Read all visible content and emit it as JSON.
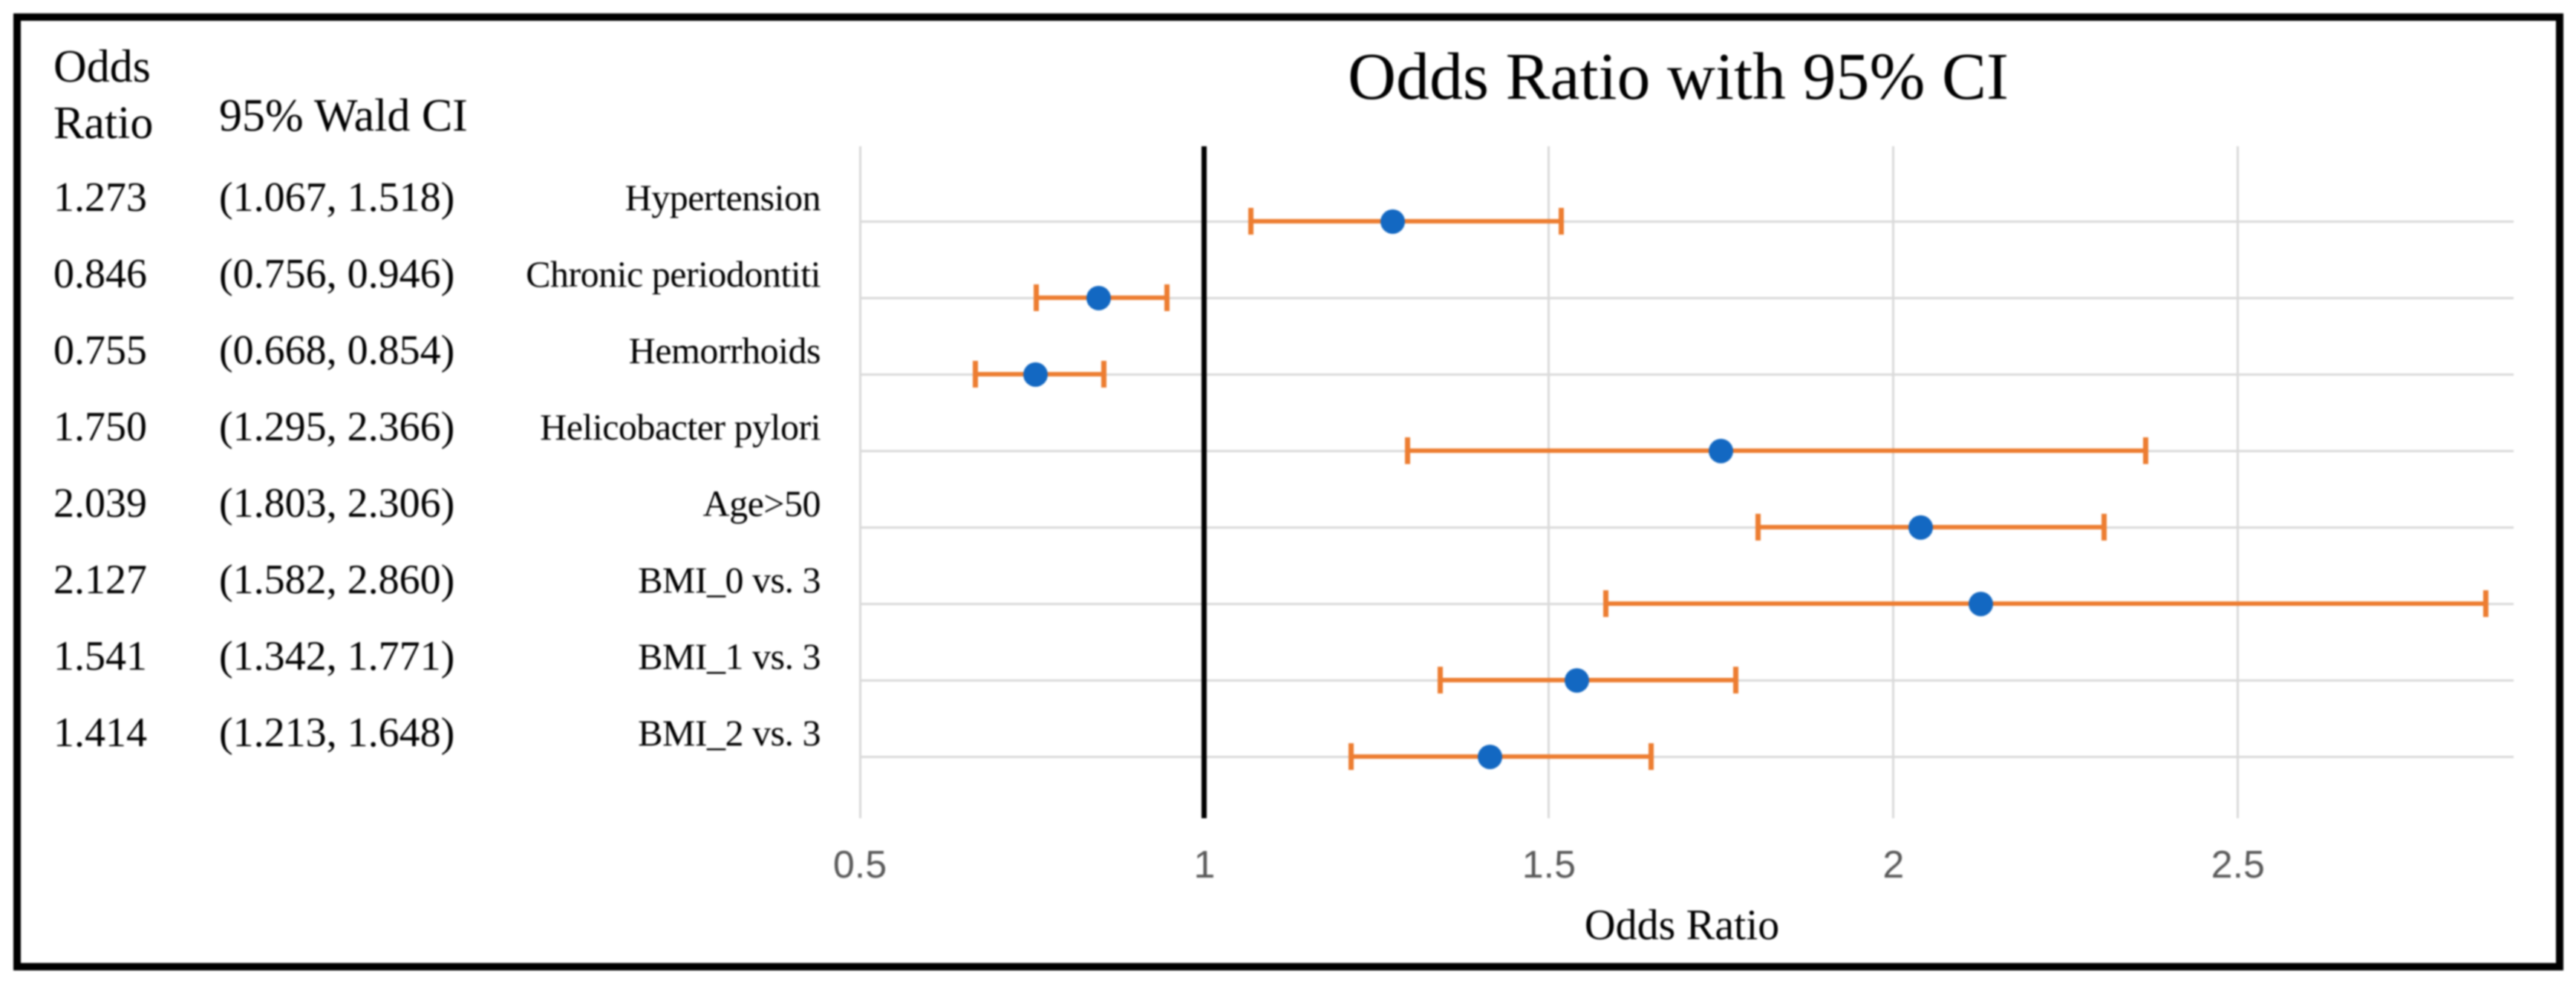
{
  "table": {
    "col1_header_line1": "Odds",
    "col1_header_line2": "Ratio",
    "col2_header": "95% Wald CI"
  },
  "chart_data": {
    "type": "scatter",
    "title": "Odds Ratio with 95% CI",
    "xlabel": "Odds Ratio",
    "xlim": [
      0.5,
      2.9
    ],
    "grid": true,
    "reference_line_x": 1,
    "gridline_values": [
      0.5,
      1.5,
      2,
      2.5
    ],
    "x_ticks": [
      {
        "value": 0.5,
        "label": "0.5"
      },
      {
        "value": 1,
        "label": "1"
      },
      {
        "value": 1.5,
        "label": "1.5"
      },
      {
        "value": 2,
        "label": "2"
      },
      {
        "value": 2.5,
        "label": "2.5"
      }
    ],
    "rows": [
      {
        "label": "Hypertension",
        "odds_ratio": 1.273,
        "ci_low": 1.067,
        "ci_high": 1.518,
        "or_text": "1.273",
        "ci_text": "(1.067, 1.518)"
      },
      {
        "label": "Chronic periodontiti",
        "odds_ratio": 0.846,
        "ci_low": 0.756,
        "ci_high": 0.946,
        "or_text": "0.846",
        "ci_text": "(0.756, 0.946)"
      },
      {
        "label": "Hemorrhoids",
        "odds_ratio": 0.755,
        "ci_low": 0.668,
        "ci_high": 0.854,
        "or_text": "0.755",
        "ci_text": "(0.668, 0.854)"
      },
      {
        "label": "Helicobacter pylori",
        "odds_ratio": 1.75,
        "ci_low": 1.295,
        "ci_high": 2.366,
        "or_text": "1.750",
        "ci_text": "(1.295, 2.366)"
      },
      {
        "label": "Age>50",
        "odds_ratio": 2.039,
        "ci_low": 1.803,
        "ci_high": 2.306,
        "or_text": "2.039",
        "ci_text": "(1.803, 2.306)"
      },
      {
        "label": "BMI_0 vs. 3",
        "odds_ratio": 2.127,
        "ci_low": 1.582,
        "ci_high": 2.86,
        "or_text": "2.127",
        "ci_text": "(1.582, 2.860)"
      },
      {
        "label": "BMI_1 vs. 3",
        "odds_ratio": 1.541,
        "ci_low": 1.342,
        "ci_high": 1.771,
        "or_text": "1.541",
        "ci_text": "(1.342, 1.771)"
      },
      {
        "label": "BMI_2 vs. 3",
        "odds_ratio": 1.414,
        "ci_low": 1.213,
        "ci_high": 1.648,
        "or_text": "1.414",
        "ci_text": "(1.213, 1.648)"
      }
    ],
    "colors": {
      "marker": "#1368C2",
      "error_bar": "#ED7D31",
      "gridline": "#D9D9D9",
      "tick_label": "#595959",
      "reference_line": "#000000",
      "text": "#000000"
    }
  }
}
